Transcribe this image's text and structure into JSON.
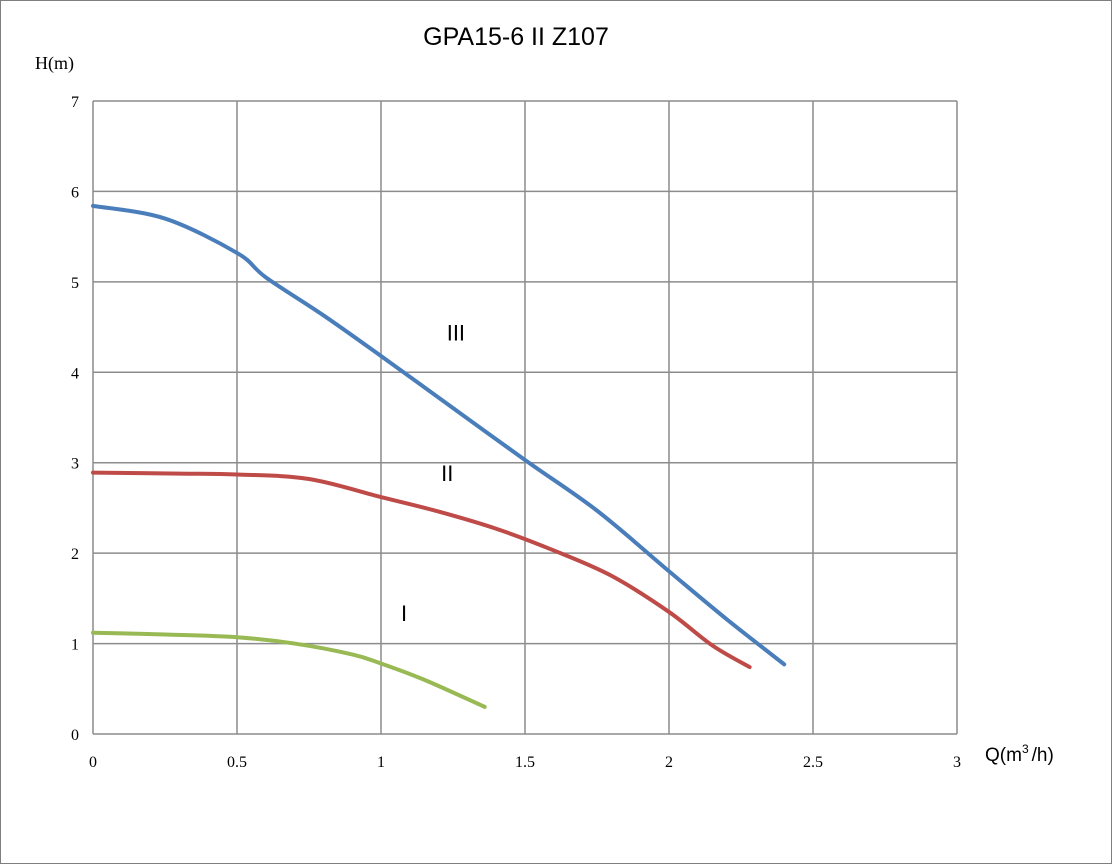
{
  "chart_data": {
    "type": "line",
    "title": "GPA15-6 II Z107",
    "ylabel": "H(m)",
    "xlabel_base": "Q(m",
    "xlabel_sup": "3",
    "xlabel_tail": "/h)",
    "xlim": [
      0,
      3
    ],
    "ylim": [
      0,
      7
    ],
    "xticks": [
      0,
      0.5,
      1,
      1.5,
      2,
      2.5,
      3
    ],
    "xtick_labels": [
      "0",
      "0.5",
      "1",
      "1.5",
      "2",
      "2.5",
      "3"
    ],
    "yticks": [
      0,
      1,
      2,
      3,
      4,
      5,
      6,
      7
    ],
    "ytick_labels": [
      "0",
      "1",
      "2",
      "3",
      "4",
      "5",
      "6",
      "7"
    ],
    "grid": true,
    "series": [
      {
        "name": "III",
        "color": "#4a7ebb",
        "x": [
          0,
          0.25,
          0.5,
          0.6,
          0.8,
          1.0,
          1.2,
          1.5,
          1.75,
          2.0,
          2.2,
          2.4
        ],
        "y": [
          5.84,
          5.7,
          5.32,
          5.05,
          4.63,
          4.18,
          3.72,
          3.03,
          2.47,
          1.8,
          1.27,
          0.77
        ],
        "label_x": 1.26,
        "label_y": 4.35
      },
      {
        "name": "II",
        "color": "#be4b48",
        "x": [
          0,
          0.3,
          0.5,
          0.75,
          1.0,
          1.2,
          1.4,
          1.6,
          1.8,
          2.0,
          2.15,
          2.28
        ],
        "y": [
          2.89,
          2.88,
          2.87,
          2.82,
          2.62,
          2.46,
          2.27,
          2.03,
          1.75,
          1.35,
          0.98,
          0.74
        ],
        "label_x": 1.23,
        "label_y": 2.8
      },
      {
        "name": "I",
        "color": "#98b954",
        "x": [
          0,
          0.25,
          0.5,
          0.7,
          0.9,
          1.0,
          1.15,
          1.36
        ],
        "y": [
          1.12,
          1.1,
          1.07,
          1.0,
          0.88,
          0.78,
          0.6,
          0.3
        ],
        "label_x": 1.08,
        "label_y": 1.25
      }
    ]
  }
}
